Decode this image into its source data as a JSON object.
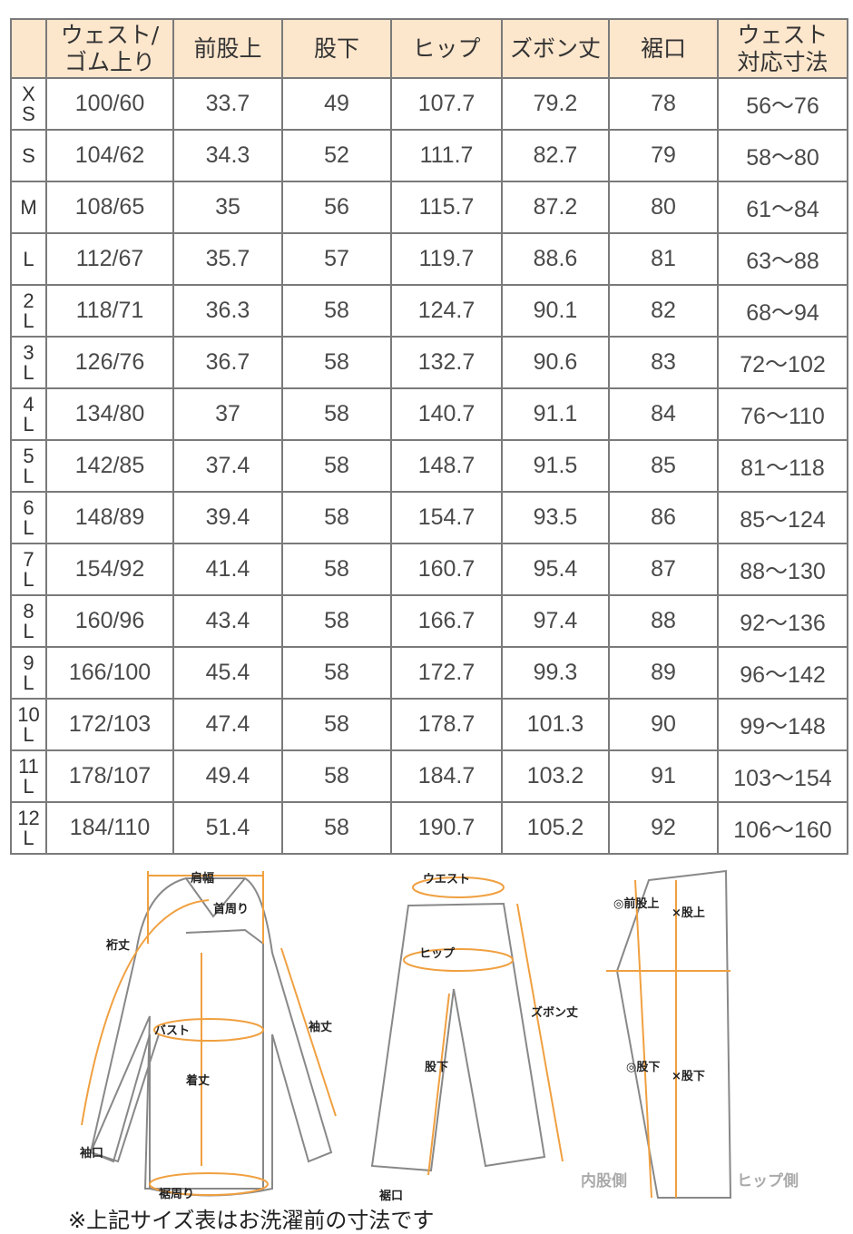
{
  "headers": [
    "",
    "ウェスト/\nゴム上り",
    "前股上",
    "股下",
    "ヒップ",
    "ズボン丈",
    "裾口",
    "ウェスト\n対応寸法"
  ],
  "rows": [
    {
      "size": [
        "X",
        "S"
      ],
      "cells": [
        "100/60",
        "33.7",
        "49",
        "107.7",
        "79.2",
        "78",
        "56～76"
      ]
    },
    {
      "size": [
        "S",
        ""
      ],
      "cells": [
        "104/62",
        "34.3",
        "52",
        "111.7",
        "82.7",
        "79",
        "58～80"
      ]
    },
    {
      "size": [
        "M",
        ""
      ],
      "cells": [
        "108/65",
        "35",
        "56",
        "115.7",
        "87.2",
        "80",
        "61～84"
      ]
    },
    {
      "size": [
        "L",
        ""
      ],
      "cells": [
        "112/67",
        "35.7",
        "57",
        "119.7",
        "88.6",
        "81",
        "63～88"
      ]
    },
    {
      "size": [
        "2",
        "L"
      ],
      "cells": [
        "118/71",
        "36.3",
        "58",
        "124.7",
        "90.1",
        "82",
        "68～94"
      ]
    },
    {
      "size": [
        "3",
        "L"
      ],
      "cells": [
        "126/76",
        "36.7",
        "58",
        "132.7",
        "90.6",
        "83",
        "72～102"
      ]
    },
    {
      "size": [
        "4",
        "L"
      ],
      "cells": [
        "134/80",
        "37",
        "58",
        "140.7",
        "91.1",
        "84",
        "76～110"
      ]
    },
    {
      "size": [
        "5",
        "L"
      ],
      "cells": [
        "142/85",
        "37.4",
        "58",
        "148.7",
        "91.5",
        "85",
        "81～118"
      ]
    },
    {
      "size": [
        "6",
        "L"
      ],
      "cells": [
        "148/89",
        "39.4",
        "58",
        "154.7",
        "93.5",
        "86",
        "85～124"
      ]
    },
    {
      "size": [
        "7",
        "L"
      ],
      "cells": [
        "154/92",
        "41.4",
        "58",
        "160.7",
        "95.4",
        "87",
        "88～130"
      ]
    },
    {
      "size": [
        "8",
        "L"
      ],
      "cells": [
        "160/96",
        "43.4",
        "58",
        "166.7",
        "97.4",
        "88",
        "92～136"
      ]
    },
    {
      "size": [
        "9",
        "L"
      ],
      "cells": [
        "166/100",
        "45.4",
        "58",
        "172.7",
        "99.3",
        "89",
        "96～142"
      ]
    },
    {
      "size": [
        "10",
        "L"
      ],
      "cells": [
        "172/103",
        "47.4",
        "58",
        "178.7",
        "101.3",
        "90",
        "99～148"
      ]
    },
    {
      "size": [
        "11",
        "L"
      ],
      "cells": [
        "178/107",
        "49.4",
        "58",
        "184.7",
        "103.2",
        "91",
        "103～154"
      ]
    },
    {
      "size": [
        "12",
        "L"
      ],
      "cells": [
        "184/110",
        "51.4",
        "58",
        "190.7",
        "105.2",
        "92",
        "106～160"
      ]
    }
  ],
  "diagram": {
    "shirt": [
      "肩幅",
      "首周り",
      "裄丈",
      "袖丈",
      "バスト",
      "着丈",
      "袖口",
      "裾周り"
    ],
    "pants": [
      "ウエスト",
      "ヒップ",
      "ズボン丈",
      "股下",
      "裾口"
    ],
    "side": [
      "◎前股上",
      "×股上",
      "◎股下",
      "×股下",
      "内股側",
      "ヒップ側"
    ]
  },
  "note": "※上記サイズ表はお洗濯前の寸法です",
  "colors": {
    "header_bg": "#fce6cc",
    "measure_line": "#f0a040"
  }
}
